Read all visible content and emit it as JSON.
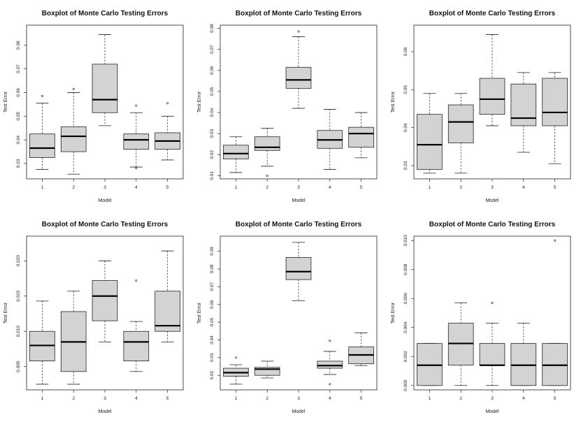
{
  "chart_data": [
    {
      "type": "boxplot",
      "title": "Boxplot of Monte Carlo Testing Errors",
      "xlabel": "Model",
      "ylabel": "Test Error",
      "categories": [
        "1",
        "2",
        "3",
        "4",
        "5"
      ],
      "ylim": [
        0.0235,
        0.0885
      ],
      "yticks": [
        0.03,
        0.04,
        0.05,
        0.06,
        0.07,
        0.08
      ],
      "ytick_labels": [
        "0.03",
        "0.04",
        "0.05",
        "0.06",
        "0.07",
        "0.08"
      ],
      "boxes": [
        {
          "min": 0.0275,
          "q1": 0.0325,
          "median": 0.0365,
          "q3": 0.0425,
          "max": 0.0555,
          "outliers": [
            0.0585
          ]
        },
        {
          "min": 0.0255,
          "q1": 0.035,
          "median": 0.0415,
          "q3": 0.0455,
          "max": 0.06,
          "outliers": [
            0.0615
          ]
        },
        {
          "min": 0.046,
          "q1": 0.0515,
          "median": 0.057,
          "q3": 0.072,
          "max": 0.0845,
          "outliers": []
        },
        {
          "min": 0.0285,
          "q1": 0.036,
          "median": 0.04,
          "q3": 0.0425,
          "max": 0.0515,
          "outliers": [
            0.0545,
            0.028
          ]
        },
        {
          "min": 0.0315,
          "q1": 0.036,
          "median": 0.0395,
          "q3": 0.043,
          "max": 0.05,
          "outliers": [
            0.0555
          ]
        }
      ]
    },
    {
      "type": "boxplot",
      "title": "Boxplot of Monte Carlo Testing Errors",
      "xlabel": "Model",
      "ylabel": "Test Error",
      "categories": [
        "1",
        "2",
        "3",
        "4",
        "5"
      ],
      "ylim": [
        0.0085,
        0.0815
      ],
      "yticks": [
        0.01,
        0.02,
        0.03,
        0.04,
        0.05,
        0.06,
        0.07,
        0.08
      ],
      "ytick_labels": [
        "0.01",
        "0.02",
        "0.03",
        "0.04",
        "0.05",
        "0.06",
        "0.07",
        "0.08"
      ],
      "boxes": [
        {
          "min": 0.0115,
          "q1": 0.018,
          "median": 0.0205,
          "q3": 0.0245,
          "max": 0.0285,
          "outliers": []
        },
        {
          "min": 0.0145,
          "q1": 0.022,
          "median": 0.0235,
          "q3": 0.0285,
          "max": 0.0325,
          "outliers": [
            0.01
          ]
        },
        {
          "min": 0.042,
          "q1": 0.0515,
          "median": 0.0555,
          "q3": 0.0615,
          "max": 0.076,
          "outliers": [
            0.0785
          ]
        },
        {
          "min": 0.013,
          "q1": 0.023,
          "median": 0.027,
          "q3": 0.0315,
          "max": 0.0415,
          "outliers": []
        },
        {
          "min": 0.0185,
          "q1": 0.0235,
          "median": 0.03,
          "q3": 0.033,
          "max": 0.04,
          "outliers": []
        }
      ]
    },
    {
      "type": "boxplot",
      "title": "Boxplot of Monte Carlo Testing Errors",
      "xlabel": "Model",
      "ylabel": "Test Error",
      "categories": [
        "1",
        "2",
        "3",
        "4",
        "5"
      ],
      "ylim": [
        0.0265,
        0.067
      ],
      "yticks": [
        0.03,
        0.04,
        0.05,
        0.06
      ],
      "ytick_labels": [
        "0.03",
        "0.04",
        "0.05",
        "0.06"
      ],
      "boxes": [
        {
          "min": 0.028,
          "q1": 0.029,
          "median": 0.0355,
          "q3": 0.0435,
          "max": 0.049,
          "outliers": []
        },
        {
          "min": 0.028,
          "q1": 0.036,
          "median": 0.0415,
          "q3": 0.046,
          "max": 0.049,
          "outliers": []
        },
        {
          "min": 0.0405,
          "q1": 0.0435,
          "median": 0.0475,
          "q3": 0.053,
          "max": 0.0645,
          "outliers": []
        },
        {
          "min": 0.0335,
          "q1": 0.0405,
          "median": 0.0425,
          "q3": 0.0515,
          "max": 0.0545,
          "outliers": []
        },
        {
          "min": 0.0305,
          "q1": 0.0405,
          "median": 0.044,
          "q3": 0.053,
          "max": 0.0545,
          "outliers": []
        }
      ]
    },
    {
      "type": "boxplot",
      "title": "Boxplot of Monte Carlo Testing Errors",
      "xlabel": "Model",
      "ylabel": "Test Error",
      "categories": [
        "1",
        "2",
        "3",
        "4",
        "5"
      ],
      "ylim": [
        0.0017,
        0.0235
      ],
      "yticks": [
        0.005,
        0.01,
        0.015,
        0.02
      ],
      "ytick_labels": [
        "0.005",
        "0.010",
        "0.015",
        "0.020"
      ],
      "boxes": [
        {
          "min": 0.0025,
          "q1": 0.0058,
          "median": 0.008,
          "q3": 0.01,
          "max": 0.0143,
          "outliers": []
        },
        {
          "min": 0.0025,
          "q1": 0.0043,
          "median": 0.0085,
          "q3": 0.0128,
          "max": 0.0157,
          "outliers": []
        },
        {
          "min": 0.0085,
          "q1": 0.0115,
          "median": 0.015,
          "q3": 0.0172,
          "max": 0.02,
          "outliers": []
        },
        {
          "min": 0.0043,
          "q1": 0.0058,
          "median": 0.0085,
          "q3": 0.01,
          "max": 0.0114,
          "outliers": [
            0.0172
          ]
        },
        {
          "min": 0.0085,
          "q1": 0.01,
          "median": 0.0108,
          "q3": 0.0157,
          "max": 0.0214,
          "outliers": []
        }
      ]
    },
    {
      "type": "boxplot",
      "title": "Boxplot of Monte Carlo Testing Errors",
      "xlabel": "Model",
      "ylabel": "Test Error",
      "categories": [
        "1",
        "2",
        "3",
        "4",
        "5"
      ],
      "ylim": [
        0.0118,
        0.0985
      ],
      "yticks": [
        0.02,
        0.03,
        0.04,
        0.05,
        0.06,
        0.07,
        0.08,
        0.09
      ],
      "ytick_labels": [
        "0.02",
        "0.03",
        "0.04",
        "0.05",
        "0.06",
        "0.07",
        "0.08",
        "0.09"
      ],
      "boxes": [
        {
          "min": 0.015,
          "q1": 0.0195,
          "median": 0.0215,
          "q3": 0.024,
          "max": 0.026,
          "outliers": [
            0.03
          ]
        },
        {
          "min": 0.0185,
          "q1": 0.02,
          "median": 0.0235,
          "q3": 0.0245,
          "max": 0.028,
          "outliers": []
        },
        {
          "min": 0.062,
          "q1": 0.074,
          "median": 0.0785,
          "q3": 0.0865,
          "max": 0.095,
          "outliers": []
        },
        {
          "min": 0.0205,
          "q1": 0.024,
          "median": 0.0255,
          "q3": 0.028,
          "max": 0.0335,
          "outliers": [
            0.0395,
            0.015
          ]
        },
        {
          "min": 0.0255,
          "q1": 0.0265,
          "median": 0.0315,
          "q3": 0.036,
          "max": 0.044,
          "outliers": []
        }
      ]
    },
    {
      "type": "boxplot",
      "title": "Boxplot of Monte Carlo Testing Errors",
      "xlabel": "Model",
      "ylabel": "Test Error",
      "categories": [
        "1",
        "2",
        "3",
        "4",
        "5"
      ],
      "ylim": [
        -0.0003,
        0.0103
      ],
      "yticks": [
        0.0,
        0.002,
        0.004,
        0.006,
        0.008,
        0.01
      ],
      "ytick_labels": [
        "0.000",
        "0.002",
        "0.004",
        "0.006",
        "0.008",
        "0.010"
      ],
      "boxes": [
        {
          "min": 0.0,
          "q1": 0.0,
          "median": 0.0014,
          "q3": 0.0029,
          "max": 0.0029,
          "outliers": []
        },
        {
          "min": 0.0,
          "q1": 0.0014,
          "median": 0.0029,
          "q3": 0.0043,
          "max": 0.0057,
          "outliers": []
        },
        {
          "min": 0.0,
          "q1": 0.0014,
          "median": 0.0014,
          "q3": 0.0029,
          "max": 0.0043,
          "outliers": [
            0.0057
          ]
        },
        {
          "min": 0.0,
          "q1": 0.0,
          "median": 0.0014,
          "q3": 0.0029,
          "max": 0.0043,
          "outliers": []
        },
        {
          "min": 0.0,
          "q1": 0.0,
          "median": 0.0014,
          "q3": 0.0029,
          "max": 0.0029,
          "outliers": [
            0.01
          ]
        }
      ]
    }
  ]
}
